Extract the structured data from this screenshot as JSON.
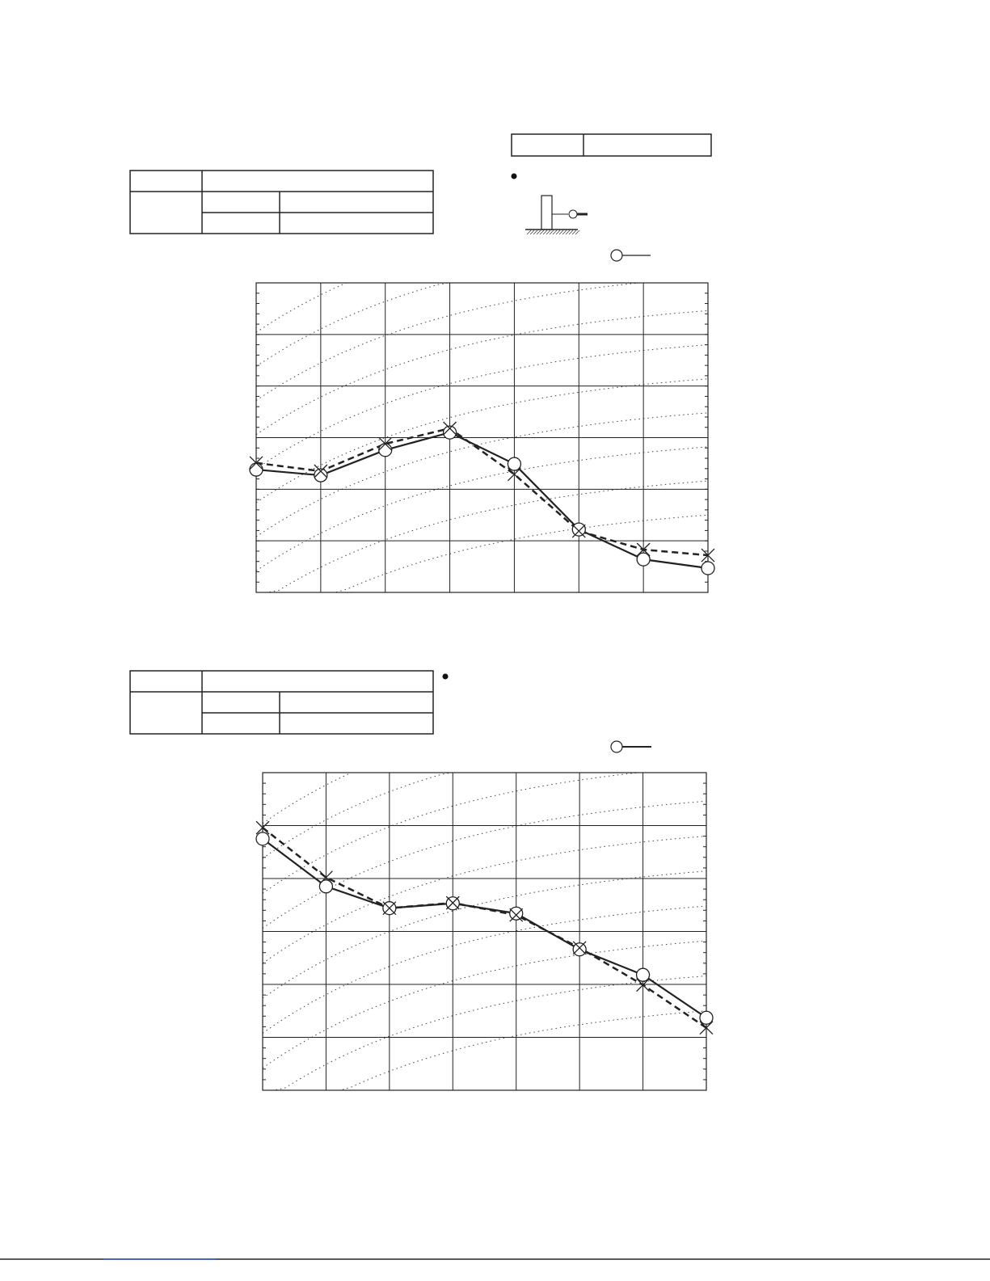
{
  "chart_data": [
    {
      "type": "line",
      "categories": [
        null,
        null,
        null,
        null,
        null,
        null,
        null,
        null
      ],
      "ylim": [
        0,
        6
      ],
      "yticks": [
        0,
        1,
        2,
        3,
        4,
        5,
        6
      ],
      "tick_labels": false,
      "grid": true,
      "series": [
        {
          "color": "#222222",
          "line": "solid",
          "marker": "circle",
          "values": [
            2.38,
            2.27,
            2.76,
            3.1,
            2.49,
            1.22,
            0.64,
            0.47
          ]
        },
        {
          "color": "#222222",
          "line": "dashed",
          "marker": "cross",
          "values": [
            2.51,
            2.35,
            2.88,
            3.18,
            2.29,
            1.19,
            0.83,
            0.72
          ]
        }
      ]
    },
    {
      "type": "line",
      "categories": [
        null,
        null,
        null,
        null,
        null,
        null,
        null,
        null
      ],
      "ylim": [
        0,
        6
      ],
      "yticks": [
        0,
        1,
        2,
        3,
        4,
        5,
        6
      ],
      "tick_labels": false,
      "grid": true,
      "series": [
        {
          "color": "#222222",
          "line": "solid",
          "marker": "circle",
          "values": [
            4.75,
            3.85,
            3.44,
            3.53,
            3.34,
            2.66,
            2.18,
            1.37
          ]
        },
        {
          "color": "#222222",
          "line": "dashed",
          "marker": "cross",
          "values": [
            4.96,
            4.02,
            3.44,
            3.54,
            3.31,
            2.69,
            1.99,
            1.18
          ]
        }
      ]
    }
  ]
}
